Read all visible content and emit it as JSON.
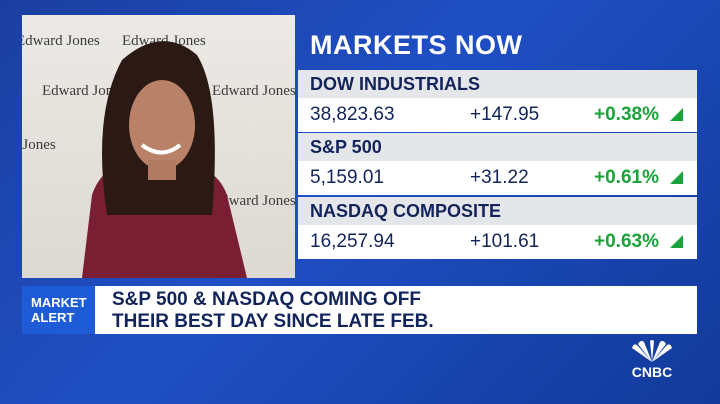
{
  "backdrop": {
    "brand": "Edward Jones"
  },
  "markets": {
    "title": "MARKETS NOW",
    "rows": [
      {
        "name": "DOW INDUSTRIALS",
        "last": "38,823.63",
        "change": "+147.95",
        "percent": "+0.38%"
      },
      {
        "name": "S&P 500",
        "last": "5,159.01",
        "change": "+31.22",
        "percent": "+0.61%"
      },
      {
        "name": "NASDAQ COMPOSITE",
        "last": "16,257.94",
        "change": "+101.61",
        "percent": "+0.63%"
      }
    ]
  },
  "alert": {
    "label": "MARKET ALERT",
    "headline": [
      "S&P 500 & NASDAQ COMING OFF",
      "THEIR BEST DAY SINCE LATE FEB."
    ]
  },
  "logo": "CNBC"
}
